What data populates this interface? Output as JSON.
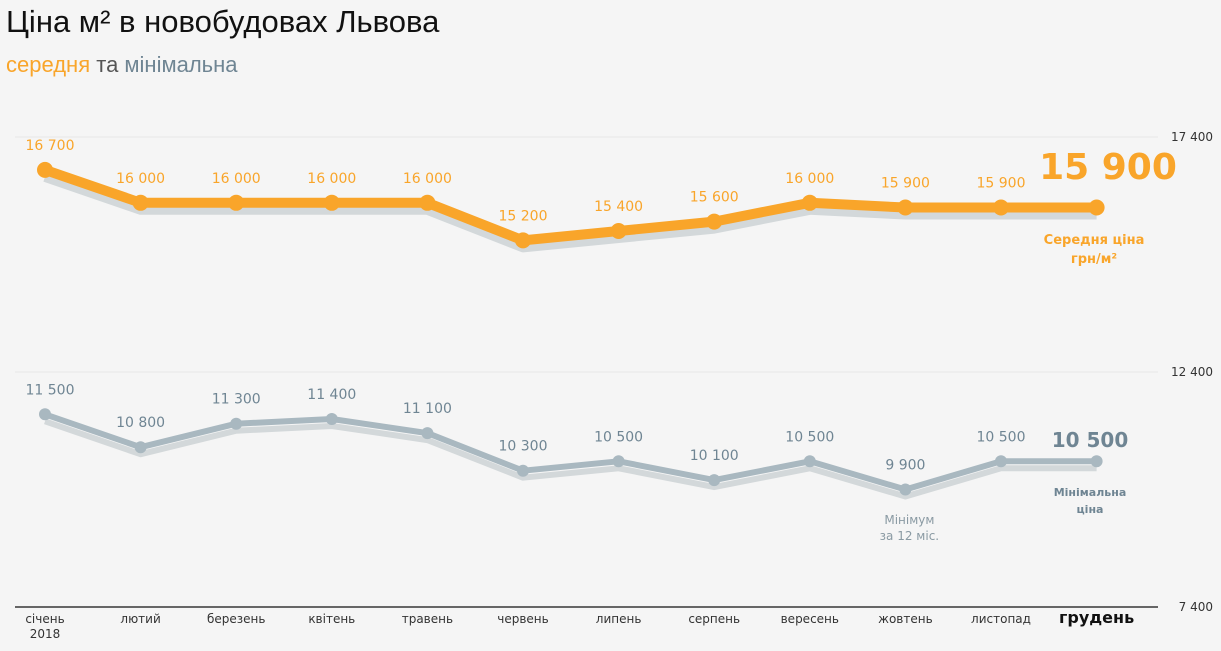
{
  "title": "Ціна м² в новобудовах Львова",
  "subtitle": {
    "part1": "середня",
    "part2": " та ",
    "part3": "мінімальна"
  },
  "colors": {
    "average": "#f9a52a",
    "minimum": "#a9b8c0",
    "minimum_text": "#6f8593",
    "shadow": "#d3d8da"
  },
  "chart_data": {
    "type": "line",
    "categories": [
      "січень 2018",
      "лютий",
      "березень",
      "квітень",
      "травень",
      "червень",
      "липень",
      "серпень",
      "вересень",
      "жовтень",
      "листопад",
      "грудень"
    ],
    "series": [
      {
        "name": "Середня ціна грн/м²",
        "values": [
          16700,
          16000,
          16000,
          16000,
          16000,
          15200,
          15400,
          15600,
          16000,
          15900,
          15900,
          15900
        ]
      },
      {
        "name": "Мінімальна ціна",
        "values": [
          11500,
          10800,
          11300,
          11400,
          11100,
          10300,
          10500,
          10100,
          10500,
          9900,
          10500,
          10500
        ]
      }
    ],
    "y_ticks": [
      "17 400",
      "12 400",
      "7 400"
    ],
    "ylim": [
      7400,
      17400
    ],
    "value_labels": {
      "average": [
        "16 700",
        "16 000",
        "16 000",
        "16 000",
        "16 000",
        "15 200",
        "15 400",
        "15 600",
        "16 000",
        "15 900",
        "15 900",
        "15 900"
      ],
      "minimum": [
        "11 500",
        "10 800",
        "11 300",
        "11 400",
        "11 100",
        "10 300",
        "10 500",
        "10 100",
        "10 500",
        "9 900",
        "10 500",
        "10 500"
      ]
    },
    "annotations": {
      "average_last": "15 900",
      "average_label_1": "Середня ціна",
      "average_label_2": "грн/м²",
      "minimum_last": "10 500",
      "minimum_label_1": "Мінімальна",
      "minimum_label_2": "ціна",
      "min_note_1": "Мінімум",
      "min_note_2": "за 12 міс."
    },
    "grid": true
  }
}
